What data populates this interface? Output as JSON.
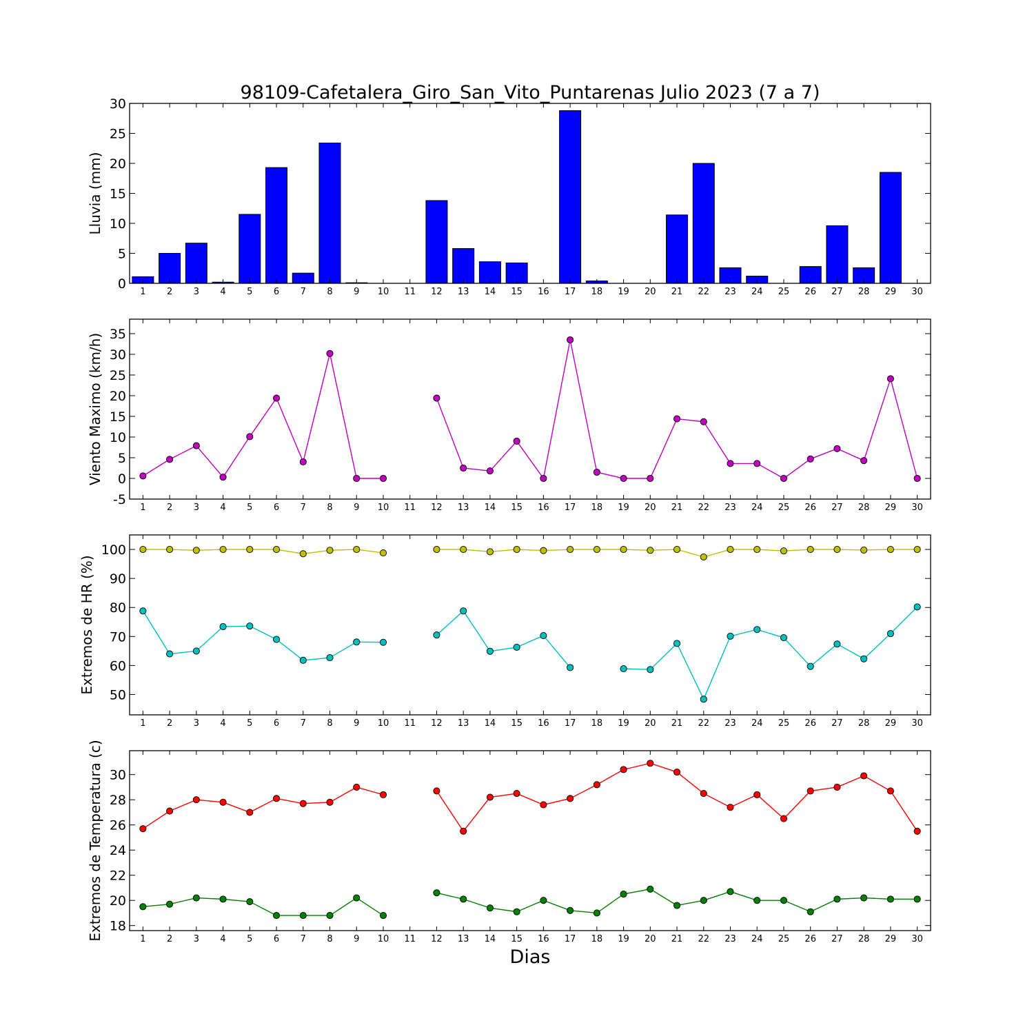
{
  "figure": {
    "title": "98109-Cafetalera_Giro_San_Vito_Puntarenas Julio 2023  (7 a 7)",
    "xlabel": "Dias"
  },
  "chart_data": [
    {
      "type": "bar",
      "ylabel": "Lluvia (mm)",
      "categories": [
        "1",
        "2",
        "3",
        "4",
        "5",
        "6",
        "7",
        "8",
        "9",
        "10",
        "11",
        "12",
        "13",
        "14",
        "15",
        "16",
        "17",
        "18",
        "19",
        "20",
        "21",
        "22",
        "23",
        "24",
        "25",
        "26",
        "27",
        "28",
        "29",
        "30"
      ],
      "ylim": [
        0,
        30
      ],
      "yticks": [
        0,
        5,
        10,
        15,
        20,
        25,
        30
      ],
      "grid": false,
      "series": [
        {
          "values": [
            1.1,
            5.0,
            6.7,
            0.2,
            11.5,
            19.3,
            1.7,
            23.4,
            0.1,
            0.0,
            0.0,
            13.8,
            5.8,
            3.6,
            3.4,
            0.0,
            28.8,
            0.4,
            0.0,
            0.0,
            11.4,
            20.0,
            2.6,
            1.2,
            0.0,
            2.8,
            9.6,
            2.6,
            18.5,
            0.0
          ],
          "color": "#0000ff"
        }
      ]
    },
    {
      "type": "line",
      "ylabel": "Viento Maximo (km/h)",
      "x": [
        1,
        2,
        3,
        4,
        5,
        6,
        7,
        8,
        9,
        10,
        11,
        12,
        13,
        14,
        15,
        16,
        17,
        18,
        19,
        20,
        21,
        22,
        23,
        24,
        25,
        26,
        27,
        28,
        29,
        30
      ],
      "ylim": [
        -5,
        38.5
      ],
      "yticks": [
        -5,
        0,
        5,
        10,
        15,
        20,
        25,
        30,
        35
      ],
      "grid": false,
      "series": [
        {
          "values": [
            0.6,
            4.6,
            7.9,
            0.3,
            10.1,
            19.4,
            4.0,
            30.2,
            0.0,
            0.0,
            null,
            19.4,
            2.5,
            1.8,
            9.0,
            0.0,
            33.5,
            1.5,
            0.0,
            0.0,
            14.4,
            13.7,
            3.6,
            3.6,
            0.0,
            4.7,
            7.2,
            4.3,
            24.1,
            0.0
          ],
          "color": "#bf00bf"
        }
      ]
    },
    {
      "type": "line",
      "ylabel": "Extremos de HR (%)",
      "x": [
        1,
        2,
        3,
        4,
        5,
        6,
        7,
        8,
        9,
        10,
        11,
        12,
        13,
        14,
        15,
        16,
        17,
        18,
        19,
        20,
        21,
        22,
        23,
        24,
        25,
        26,
        27,
        28,
        29,
        30
      ],
      "ylim": [
        43,
        105
      ],
      "yticks": [
        50,
        60,
        70,
        80,
        90,
        100
      ],
      "grid": false,
      "series": [
        {
          "values": [
            100,
            100,
            99.7,
            100,
            100,
            100,
            98.5,
            99.7,
            100,
            98.8,
            null,
            100,
            100,
            99.2,
            100,
            99.6,
            100,
            100,
            100,
            99.7,
            100,
            97.4,
            100,
            100,
            99.5,
            100,
            100,
            99.8,
            100,
            100
          ],
          "color": "#bfbf00"
        },
        {
          "values": [
            78.8,
            64.0,
            65.0,
            73.4,
            73.6,
            69.0,
            61.8,
            62.7,
            68.1,
            68.0,
            null,
            70.5,
            78.8,
            64.9,
            66.3,
            70.3,
            59.3,
            null,
            58.9,
            58.6,
            67.6,
            48.4,
            70.1,
            72.4,
            69.6,
            59.7,
            67.4,
            62.3,
            71.0,
            80.2
          ],
          "color": "#00bfbf"
        }
      ]
    },
    {
      "type": "line",
      "ylabel": "Extremos de Temperatura (c)",
      "x": [
        1,
        2,
        3,
        4,
        5,
        6,
        7,
        8,
        9,
        10,
        11,
        12,
        13,
        14,
        15,
        16,
        17,
        18,
        19,
        20,
        21,
        22,
        23,
        24,
        25,
        26,
        27,
        28,
        29,
        30
      ],
      "ylim": [
        17.6,
        31.9
      ],
      "yticks": [
        18,
        20,
        22,
        24,
        26,
        28,
        30
      ],
      "grid": false,
      "series": [
        {
          "values": [
            25.7,
            27.1,
            28.0,
            27.8,
            27.0,
            28.1,
            27.7,
            27.8,
            29.0,
            28.4,
            null,
            28.7,
            25.5,
            28.2,
            28.5,
            27.6,
            28.1,
            29.2,
            30.4,
            30.9,
            30.2,
            28.5,
            27.4,
            28.4,
            26.5,
            28.7,
            29.0,
            29.9,
            28.7,
            25.5
          ],
          "color": "#ff0000"
        },
        {
          "values": [
            19.5,
            19.7,
            20.2,
            20.1,
            19.9,
            18.8,
            18.8,
            18.8,
            20.2,
            18.8,
            null,
            20.6,
            20.1,
            19.4,
            19.1,
            20.0,
            19.2,
            19.0,
            20.5,
            20.9,
            19.6,
            20.0,
            20.7,
            20.0,
            20.0,
            19.1,
            20.1,
            20.2,
            20.1,
            20.1
          ],
          "color": "#008000"
        }
      ]
    }
  ]
}
